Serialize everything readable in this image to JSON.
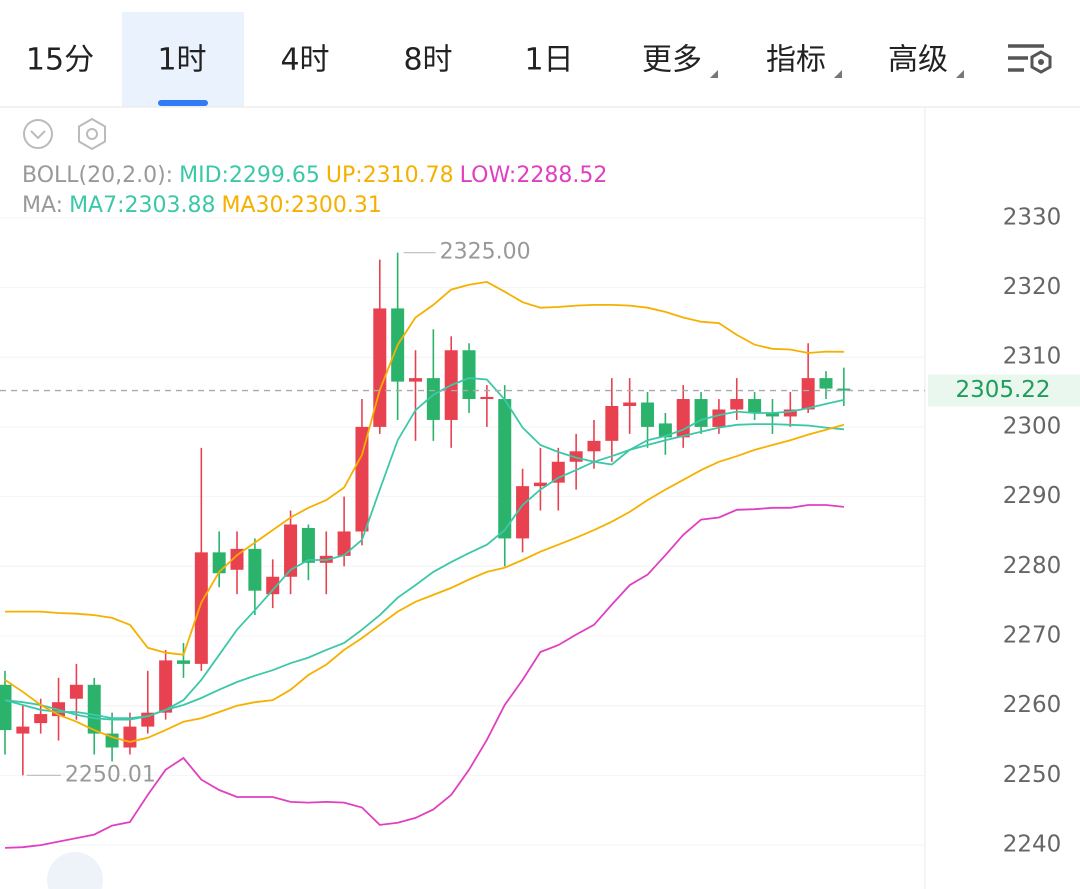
{
  "tabs": [
    "15分",
    "1时",
    "4时",
    "8时",
    "1日",
    "更多",
    "指标",
    "高级"
  ],
  "selected_tab": 1,
  "chart_data": {
    "type": "candlestick",
    "up_color": "#e8414f",
    "down_color": "#2bb36b",
    "ohlc": {
      "open": [
        2263,
        2256,
        2257.5,
        2258.5,
        2261,
        2263,
        2256,
        2254,
        2257,
        2259,
        2266.5,
        2266,
        2282,
        2279.5,
        2282.5,
        2276,
        2278.5,
        2285.5,
        2280.5,
        2281.5,
        2285,
        2300,
        2317,
        2306.5,
        2307,
        2301,
        2311,
        2304,
        2304,
        2284,
        2291.5,
        2292,
        2295,
        2296.5,
        2298,
        2303,
        2303.5,
        2300.5,
        2298.5,
        2304,
        2300,
        2302.5,
        2304,
        2302,
        2301.5,
        2302.5,
        2307,
        2305.5
      ],
      "high": [
        2265,
        2260,
        2261,
        2264,
        2266,
        2264,
        2259,
        2259,
        2265,
        2268,
        2269,
        2297,
        2285,
        2285,
        2284,
        2281,
        2288,
        2286,
        2285,
        2290,
        2304,
        2324,
        2325,
        2311,
        2314,
        2313,
        2312,
        2306,
        2306,
        2294,
        2297,
        2297,
        2299,
        2301,
        2307,
        2307,
        2305,
        2302,
        2306,
        2305,
        2304,
        2307,
        2305,
        2304,
        2305,
        2312,
        2308,
        2308.5
      ],
      "low": [
        2253,
        2250.01,
        2256,
        2255,
        2258,
        2253,
        2252,
        2253,
        2256,
        2258,
        2264,
        2265,
        2277,
        2276,
        2273,
        2274,
        2276,
        2278,
        2276,
        2280,
        2283,
        2299,
        2301,
        2298,
        2298,
        2297,
        2302,
        2300,
        2280,
        2282,
        2288,
        2288,
        2291,
        2294,
        2295,
        2299,
        2297,
        2296,
        2297,
        2299,
        2299,
        2301,
        2301,
        2299,
        2300,
        2302,
        2304,
        2303
      ],
      "close": [
        2256.5,
        2257,
        2258.8,
        2260.5,
        2263,
        2256,
        2254,
        2257,
        2259,
        2266.5,
        2266,
        2282,
        2279,
        2282.5,
        2276.5,
        2278.5,
        2286,
        2280.5,
        2281.5,
        2285,
        2300,
        2317,
        2306.5,
        2307,
        2301,
        2311,
        2304,
        2304.3,
        2284,
        2291.5,
        2292,
        2295,
        2296.5,
        2298,
        2303,
        2303.5,
        2300,
        2298.5,
        2304,
        2300,
        2302.5,
        2304,
        2302,
        2301.5,
        2302.5,
        2307,
        2305.5,
        2305.22
      ]
    },
    "lines": [
      {
        "color": "#f5b000",
        "values": [
          2273.5,
          2273.5,
          2273.5,
          2273.3,
          2273.2,
          2273.0,
          2272.6,
          2271.6,
          2268.3,
          2267.6,
          2267.3,
          2274.8,
          2279.2,
          2281.6,
          2283.4,
          2285.2,
          2287.0,
          2288.4,
          2289.5,
          2291.3,
          2296.0,
          2305.3,
          2311.8,
          2315.7,
          2317.5,
          2319.7,
          2320.4,
          2320.8,
          2319.4,
          2317.9,
          2317.1,
          2317.2,
          2317.4,
          2317.5,
          2317.5,
          2317.4,
          2317.1,
          2316.5,
          2315.7,
          2315.1,
          2314.9,
          2313.2,
          2311.8,
          2311.2,
          2311.1,
          2310.6,
          2310.8,
          2310.78
        ]
      },
      {
        "color": "#3cc8a8",
        "values": [
          2260.8,
          2260.5,
          2260.1,
          2259.4,
          2258.7,
          2258.2,
          2258.0,
          2258.0,
          2258.5,
          2259.4,
          2260.1,
          2261.1,
          2262.3,
          2263.4,
          2264.3,
          2265.1,
          2266.1,
          2266.9,
          2268.0,
          2269.0,
          2270.9,
          2273.0,
          2275.5,
          2277.3,
          2279.2,
          2280.6,
          2281.9,
          2283.1,
          2285.2,
          2288.8,
          2291.0,
          2292.7,
          2293.8,
          2295.0,
          2295.8,
          2296.7,
          2297.4,
          2298.1,
          2298.7,
          2299.3,
          2299.9,
          2300.3,
          2300.4,
          2300.4,
          2300.3,
          2300.2,
          2299.9,
          2299.65
        ]
      },
      {
        "color": "#e040c0",
        "values": [
          2239.6,
          2239.7,
          2240.0,
          2240.5,
          2241.0,
          2241.5,
          2242.8,
          2243.3,
          2247.2,
          2250.8,
          2252.5,
          2249.4,
          2247.9,
          2246.9,
          2246.9,
          2246.9,
          2246.2,
          2246.1,
          2246.2,
          2246.1,
          2245.4,
          2242.9,
          2243.2,
          2243.9,
          2245.1,
          2247.2,
          2250.8,
          2255.1,
          2260.1,
          2263.7,
          2267.7,
          2268.7,
          2270.2,
          2271.6,
          2274.5,
          2277.3,
          2278.8,
          2281.6,
          2284.5,
          2286.7,
          2287.0,
          2288.1,
          2288.2,
          2288.4,
          2288.4,
          2288.8,
          2288.8,
          2288.52
        ]
      },
      {
        "color": "#3cc8a8",
        "values": [
          2260.8,
          2260.1,
          2259.4,
          2259.1,
          2259.1,
          2258.7,
          2258.2,
          2258.2,
          2258.5,
          2259.4,
          2260.8,
          2263.7,
          2267.3,
          2270.9,
          2273.7,
          2276.6,
          2279.5,
          2280.9,
          2280.9,
          2281.6,
          2283.8,
          2291.0,
          2298.1,
          2302.4,
          2304.6,
          2306.0,
          2307.0,
          2306.8,
          2303.9,
          2299.9,
          2297.4,
          2296.4,
          2295.6,
          2295.0,
          2294.6,
          2296.7,
          2298.1,
          2298.7,
          2299.6,
          2301.0,
          2301.7,
          2302.2,
          2302.0,
          2302.0,
          2302.2,
          2302.7,
          2303.3,
          2303.88
        ]
      },
      {
        "color": "#f5b000",
        "values": [
          2263.7,
          2262.0,
          2260.1,
          2258.7,
          2257.7,
          2256.5,
          2255.5,
          2254.8,
          2255.4,
          2256.5,
          2257.7,
          2258.2,
          2259.1,
          2260.0,
          2260.5,
          2260.8,
          2262.3,
          2264.4,
          2265.9,
          2268.0,
          2269.7,
          2271.6,
          2273.5,
          2274.9,
          2275.9,
          2276.9,
          2278.1,
          2279.2,
          2279.8,
          2280.9,
          2282.1,
          2283.1,
          2284.1,
          2285.2,
          2286.4,
          2287.8,
          2289.5,
          2291.0,
          2292.4,
          2293.8,
          2295.0,
          2295.8,
          2296.7,
          2297.4,
          2298.1,
          2298.9,
          2299.6,
          2300.31
        ]
      }
    ],
    "legend": [
      [
        {
          "text": "BOLL(20,2.0):",
          "color": "#999999"
        },
        {
          "text": "MID:2299.65",
          "color": "#3cc8a8"
        },
        {
          "text": "UP:2310.78",
          "color": "#f5b000"
        },
        {
          "text": "LOW:2288.52",
          "color": "#e040c0"
        }
      ],
      [
        {
          "text": "MA:",
          "color": "#999999"
        },
        {
          "text": "MA7:2303.88",
          "color": "#3cc8a8"
        },
        {
          "text": "MA30:2300.31",
          "color": "#f5b000"
        }
      ]
    ],
    "max_label": {
      "value": 2325,
      "label": "2325.00"
    },
    "min_label": {
      "value": 2250.01,
      "label": "2250.01"
    },
    "last_price": {
      "value": 2305.22,
      "label": "2305.22"
    },
    "ylim": [
      2233.7,
      2345.9
    ],
    "yticks": [
      2240,
      2250,
      2260,
      2270,
      2280,
      2290,
      2300,
      2310,
      2320,
      2330
    ],
    "grid": true
  }
}
